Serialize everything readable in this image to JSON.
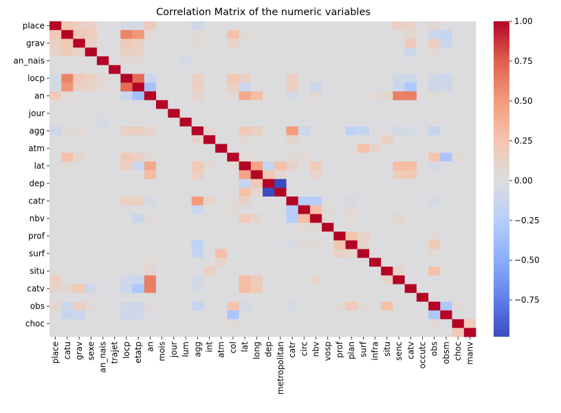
{
  "chart_data": {
    "type": "heatmap",
    "title": "Correlation Matrix of the numeric variables",
    "variables": [
      "place",
      "catu",
      "grav",
      "sexe",
      "an_nais",
      "trajet",
      "locp",
      "etatp",
      "an",
      "mois",
      "jour",
      "lum",
      "agg",
      "int",
      "atm",
      "col",
      "lat",
      "long",
      "dep",
      "metropolitan",
      "catr",
      "circ",
      "nbv",
      "vosp",
      "prof",
      "plan",
      "surf",
      "infra",
      "situ",
      "senc",
      "catv",
      "occutc",
      "obs",
      "obsm",
      "choc",
      "manv"
    ],
    "x_tick_labels": [
      "place",
      "catu",
      "grav",
      "sexe",
      "an_nais",
      "trajet",
      "locp",
      "etatp",
      "an",
      "mois",
      "jour",
      "lum",
      "agg",
      "int",
      "atm",
      "col",
      "lat",
      "long",
      "dep",
      "metropolitan",
      "catr",
      "circ",
      "nbv",
      "vosp",
      "prof",
      "plan",
      "surf",
      "infra",
      "situ",
      "senc",
      "catv",
      "occutc",
      "obs",
      "obsm",
      "choc",
      "manv"
    ],
    "y_tick_labels": [
      "place",
      "grav",
      "an_nais",
      "locp",
      "an",
      "jour",
      "agg",
      "atm",
      "lat",
      "dep",
      "catr",
      "nbv",
      "prof",
      "surf",
      "situ",
      "catv",
      "obs",
      "choc"
    ],
    "colormap": "coolwarm",
    "vmin": -0.98,
    "vmax": 1.0,
    "colorbar_ticks": [
      "1.00",
      "0.75",
      "0.50",
      "0.25",
      "0.00",
      "−0.25",
      "−0.50",
      "−0.75"
    ],
    "colorbar_tick_values": [
      1.0,
      0.75,
      0.5,
      0.25,
      0.0,
      -0.25,
      -0.5,
      -0.75
    ],
    "diagonal": 1.0,
    "default_value": 0.0,
    "correlations": [
      [
        "place",
        "catu",
        0.22
      ],
      [
        "place",
        "grav",
        0.15
      ],
      [
        "place",
        "sexe",
        0.12
      ],
      [
        "place",
        "locp",
        -0.05
      ],
      [
        "place",
        "etatp",
        -0.05
      ],
      [
        "place",
        "an",
        0.18
      ],
      [
        "place",
        "agg",
        -0.1
      ],
      [
        "place",
        "obs",
        0.08
      ],
      [
        "place",
        "catv",
        0.1
      ],
      [
        "place",
        "senc",
        0.15
      ],
      [
        "catu",
        "grav",
        0.22
      ],
      [
        "catu",
        "sexe",
        0.18
      ],
      [
        "catu",
        "locp",
        0.6
      ],
      [
        "catu",
        "etatp",
        0.52
      ],
      [
        "catu",
        "col",
        0.28
      ],
      [
        "catu",
        "obs",
        -0.12
      ],
      [
        "catu",
        "obsm",
        -0.15
      ],
      [
        "catu",
        "catv",
        0.08
      ],
      [
        "catu",
        "an",
        0.05
      ],
      [
        "catu",
        "lat",
        0.05
      ],
      [
        "catu",
        "agg",
        0.05
      ],
      [
        "grav",
        "sexe",
        0.12
      ],
      [
        "grav",
        "locp",
        0.2
      ],
      [
        "grav",
        "etatp",
        0.15
      ],
      [
        "grav",
        "obs",
        0.15
      ],
      [
        "grav",
        "obsm",
        -0.12
      ],
      [
        "grav",
        "catv",
        0.2
      ],
      [
        "grav",
        "col",
        0.1
      ],
      [
        "grav",
        "agg",
        0.05
      ],
      [
        "sexe",
        "locp",
        0.15
      ],
      [
        "sexe",
        "etatp",
        0.12
      ],
      [
        "sexe",
        "obs",
        0.05
      ],
      [
        "sexe",
        "catv",
        -0.1
      ],
      [
        "an_nais",
        "locp",
        0.05
      ],
      [
        "an_nais",
        "lum",
        -0.05
      ],
      [
        "an_nais",
        "etatp",
        0.05
      ],
      [
        "locp",
        "etatp",
        0.7
      ],
      [
        "locp",
        "an",
        -0.12
      ],
      [
        "locp",
        "agg",
        0.15
      ],
      [
        "locp",
        "col",
        0.22
      ],
      [
        "locp",
        "lat",
        0.15
      ],
      [
        "locp",
        "catr",
        0.15
      ],
      [
        "locp",
        "senc",
        -0.08
      ],
      [
        "locp",
        "obs",
        -0.08
      ],
      [
        "locp",
        "obsm",
        -0.12
      ],
      [
        "locp",
        "catv",
        -0.12
      ],
      [
        "etatp",
        "an",
        -0.35
      ],
      [
        "etatp",
        "agg",
        0.15
      ],
      [
        "etatp",
        "col",
        0.15
      ],
      [
        "etatp",
        "lat",
        -0.12
      ],
      [
        "etatp",
        "catr",
        0.15
      ],
      [
        "etatp",
        "catv",
        -0.3
      ],
      [
        "etatp",
        "senc",
        -0.12
      ],
      [
        "etatp",
        "obs",
        -0.1
      ],
      [
        "etatp",
        "obsm",
        -0.1
      ],
      [
        "etatp",
        "nbv",
        -0.12
      ],
      [
        "an",
        "lat",
        0.42
      ],
      [
        "an",
        "long",
        0.3
      ],
      [
        "an",
        "senc",
        0.62
      ],
      [
        "an",
        "catv",
        0.62
      ],
      [
        "an",
        "agg",
        0.1
      ],
      [
        "an",
        "col",
        0.05
      ],
      [
        "an",
        "catr",
        -0.05
      ],
      [
        "an",
        "obs",
        0.05
      ],
      [
        "an",
        "nbv",
        0.05
      ],
      [
        "an",
        "situ",
        0.08
      ],
      [
        "an",
        "infra",
        0.05
      ],
      [
        "agg",
        "int",
        0.1
      ],
      [
        "agg",
        "lat",
        0.2
      ],
      [
        "agg",
        "long",
        0.15
      ],
      [
        "agg",
        "catr",
        0.5
      ],
      [
        "agg",
        "circ",
        -0.12
      ],
      [
        "agg",
        "plan",
        -0.2
      ],
      [
        "agg",
        "obs",
        -0.15
      ],
      [
        "agg",
        "surf",
        -0.15
      ],
      [
        "agg",
        "senc",
        -0.08
      ],
      [
        "agg",
        "catv",
        -0.05
      ],
      [
        "int",
        "lat",
        0.05
      ],
      [
        "int",
        "situ",
        0.15
      ],
      [
        "int",
        "catr",
        0.1
      ],
      [
        "atm",
        "surf",
        0.28
      ],
      [
        "atm",
        "infra",
        0.1
      ],
      [
        "col",
        "lat",
        0.05
      ],
      [
        "col",
        "catr",
        0.05
      ],
      [
        "col",
        "obs",
        0.25
      ],
      [
        "col",
        "obsm",
        -0.32
      ],
      [
        "col",
        "choc",
        0.05
      ],
      [
        "col",
        "circ",
        0.05
      ],
      [
        "lat",
        "long",
        0.45
      ],
      [
        "lat",
        "dep",
        -0.15
      ],
      [
        "lat",
        "metropolitan",
        0.28
      ],
      [
        "lat",
        "catr",
        0.12
      ],
      [
        "lat",
        "nbv",
        0.2
      ],
      [
        "lat",
        "senc",
        0.3
      ],
      [
        "lat",
        "obs",
        -0.05
      ],
      [
        "lat",
        "catv",
        0.3
      ],
      [
        "long",
        "dep",
        0.22
      ],
      [
        "long",
        "metropolitan",
        0.08
      ],
      [
        "long",
        "nbv",
        0.1
      ],
      [
        "long",
        "senc",
        0.18
      ],
      [
        "long",
        "catv",
        0.22
      ],
      [
        "dep",
        "metropolitan",
        -0.98
      ],
      [
        "catr",
        "circ",
        -0.25
      ],
      [
        "catr",
        "nbv",
        -0.25
      ],
      [
        "catr",
        "plan",
        -0.05
      ],
      [
        "catr",
        "obs",
        -0.05
      ],
      [
        "circ",
        "nbv",
        0.3
      ],
      [
        "circ",
        "vosp",
        0.05
      ],
      [
        "circ",
        "plan",
        0.05
      ],
      [
        "nbv",
        "vosp",
        0.05
      ],
      [
        "nbv",
        "plan",
        0.05
      ],
      [
        "nbv",
        "senc",
        0.1
      ],
      [
        "prof",
        "plan",
        0.25
      ],
      [
        "prof",
        "surf",
        0.12
      ],
      [
        "prof",
        "obs",
        0.05
      ],
      [
        "plan",
        "surf",
        0.1
      ],
      [
        "plan",
        "obs",
        0.2
      ],
      [
        "surf",
        "obs",
        0.05
      ],
      [
        "situ",
        "obs",
        0.28
      ],
      [
        "situ",
        "senc",
        0.1
      ],
      [
        "obs",
        "obsm",
        -0.3
      ],
      [
        "obs",
        "choc",
        0.05
      ],
      [
        "choc",
        "manv",
        0.2
      ]
    ]
  }
}
